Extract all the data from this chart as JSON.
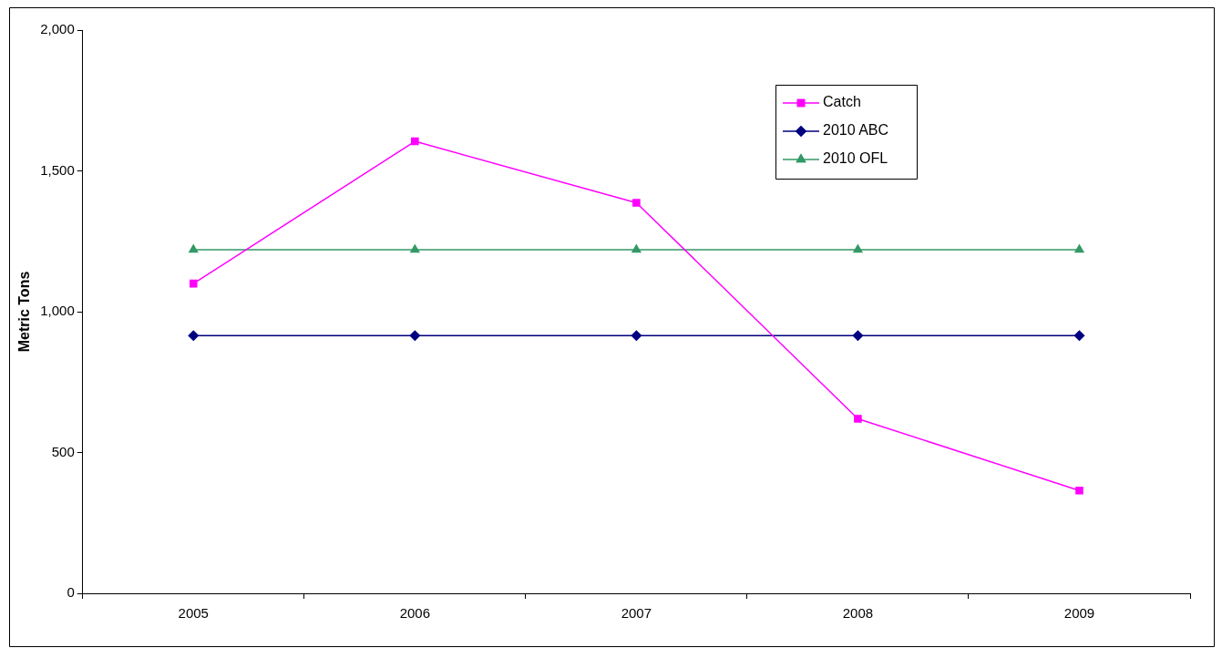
{
  "chart_data": {
    "type": "line",
    "ylabel": "Metric Tons",
    "categories": [
      "2005",
      "2006",
      "2007",
      "2008",
      "2009"
    ],
    "series": [
      {
        "name": "Catch",
        "color": "#ff00ff",
        "marker": "square",
        "values": [
          1100,
          1605,
          1387,
          620,
          365
        ]
      },
      {
        "name": "2010 ABC",
        "color": "#000080",
        "marker": "diamond",
        "values": [
          915,
          915,
          915,
          915,
          915
        ]
      },
      {
        "name": "2010 OFL",
        "color": "#339966",
        "marker": "triangle",
        "values": [
          1220,
          1220,
          1220,
          1220,
          1220
        ]
      }
    ],
    "ylim": [
      0,
      2000
    ],
    "yticks": [
      0,
      500,
      {
        "value": 1000,
        "label": "1,000"
      },
      {
        "value": 1500,
        "label": "1,500"
      },
      {
        "value": 2000,
        "label": "2,000"
      }
    ],
    "grid": false,
    "legend": "top right",
    "line_style": "solid"
  }
}
